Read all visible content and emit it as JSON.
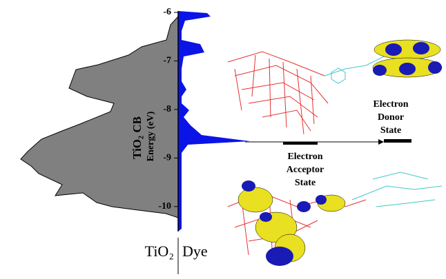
{
  "axis": {
    "label": "Energy (eV)",
    "ylim": [
      -6,
      -10.5
    ],
    "ticks": [
      -6,
      -7,
      -8,
      -9,
      -10
    ]
  },
  "labels": {
    "tio2_cb": "TiO₂ CB",
    "bottom_left": "TiO₂",
    "bottom_right": "Dye",
    "donor": [
      "Electron",
      "Donor",
      "State"
    ],
    "acceptor": [
      "Electron",
      "Acceptor",
      "State"
    ]
  }
}
